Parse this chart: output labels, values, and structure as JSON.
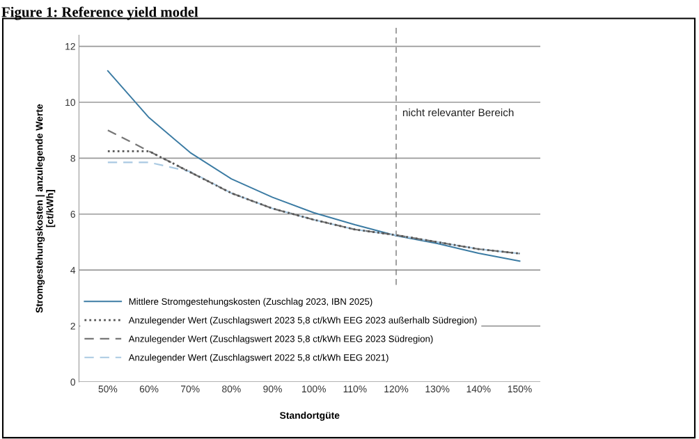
{
  "chart_data": {
    "type": "line",
    "title": "Figure 1: Reference yield model",
    "xlabel": "Standortgüte",
    "ylabel": "Stromgestehungskosten | anzulegende Werte\n[ct/kWh]",
    "x": [
      50,
      60,
      70,
      80,
      90,
      100,
      110,
      120,
      130,
      140,
      150
    ],
    "series": [
      {
        "name": "Mittlere Stromgestehungskosten (Zuschlag 2023, IBN 2025)",
        "color": "#3b7ba3",
        "line_style": "solid",
        "values": [
          11.12,
          9.45,
          8.2,
          7.26,
          6.6,
          6.05,
          5.62,
          5.23,
          4.95,
          4.6,
          4.32
        ]
      },
      {
        "name": "Anzulegender Wert (Zuschlagswert 2023 5,8 ct/kWh EEG 2023 außerhalb Südregion)",
        "color": "#555555",
        "line_style": "dotted",
        "values": [
          8.25,
          8.25,
          7.5,
          6.75,
          6.2,
          5.8,
          5.45,
          5.25,
          5.0,
          4.75,
          4.59
        ]
      },
      {
        "name": "Anzulegender Wert (Zuschlagswert 2023 5,8 ct/kWh EEG 2023 Südregion)",
        "color": "#777777",
        "line_style": "dashed",
        "values": [
          9.0,
          8.25,
          7.5,
          6.75,
          6.2,
          5.8,
          5.45,
          5.25,
          5.0,
          4.75,
          4.59
        ]
      },
      {
        "name": "Anzulegender Wert (Zuschlagswert 2022 5,8 ct/kWh EEG 2021)",
        "color": "#a9c9e2",
        "line_style": "dashed",
        "values": [
          7.85,
          7.85,
          7.52,
          6.75,
          6.2,
          5.8,
          5.45,
          5.25,
          5.0,
          4.75,
          4.59
        ]
      }
    ],
    "xlim": [
      43,
      155
    ],
    "ylim": [
      0,
      12.4
    ],
    "xticks": [
      {
        "value": 50,
        "label": "50%"
      },
      {
        "value": 60,
        "label": "60%"
      },
      {
        "value": 70,
        "label": "70%"
      },
      {
        "value": 80,
        "label": "80%"
      },
      {
        "value": 90,
        "label": "90%"
      },
      {
        "value": 100,
        "label": "100%"
      },
      {
        "value": 110,
        "label": "110%"
      },
      {
        "value": 120,
        "label": "120%"
      },
      {
        "value": 130,
        "label": "130%"
      },
      {
        "value": 140,
        "label": "140%"
      },
      {
        "value": 150,
        "label": "150%"
      }
    ],
    "yticks": [
      0,
      2,
      4,
      6,
      8,
      10,
      12
    ],
    "ref_lines": [
      {
        "axis": "x",
        "value": 120,
        "label": "nicht relevanter Bereich",
        "color": "#777777",
        "line_style": "dashed"
      }
    ],
    "grid": "y",
    "legend": "bottom left",
    "marker": "none"
  }
}
